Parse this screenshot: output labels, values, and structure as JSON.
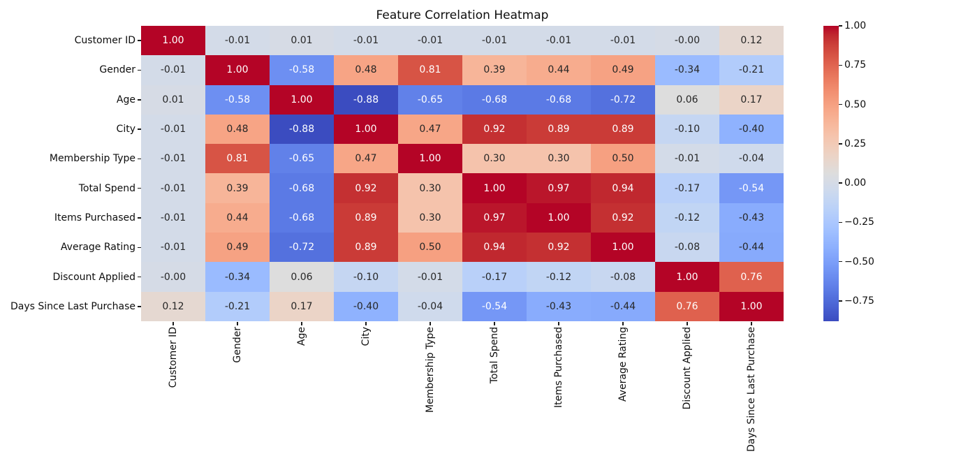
{
  "figure": {
    "background": "#ffffff"
  },
  "chart_data": {
    "type": "heatmap",
    "title": "Feature Correlation Heatmap",
    "categories": [
      "Customer ID",
      "Gender",
      "Age",
      "City",
      "Membership Type",
      "Total Spend",
      "Items Purchased",
      "Average Rating",
      "Discount Applied",
      "Days Since Last Purchase"
    ],
    "matrix": [
      [
        "1.00",
        "-0.01",
        "0.01",
        "-0.01",
        "-0.01",
        "-0.01",
        "-0.01",
        "-0.01",
        "-0.00",
        "0.12"
      ],
      [
        "-0.01",
        "1.00",
        "-0.58",
        "0.48",
        "0.81",
        "0.39",
        "0.44",
        "0.49",
        "-0.34",
        "-0.21"
      ],
      [
        "0.01",
        "-0.58",
        "1.00",
        "-0.88",
        "-0.65",
        "-0.68",
        "-0.68",
        "-0.72",
        "0.06",
        "0.17"
      ],
      [
        "-0.01",
        "0.48",
        "-0.88",
        "1.00",
        "0.47",
        "0.92",
        "0.89",
        "0.89",
        "-0.10",
        "-0.40"
      ],
      [
        "-0.01",
        "0.81",
        "-0.65",
        "0.47",
        "1.00",
        "0.30",
        "0.30",
        "0.50",
        "-0.01",
        "-0.04"
      ],
      [
        "-0.01",
        "0.39",
        "-0.68",
        "0.92",
        "0.30",
        "1.00",
        "0.97",
        "0.94",
        "-0.17",
        "-0.54"
      ],
      [
        "-0.01",
        "0.44",
        "-0.68",
        "0.89",
        "0.30",
        "0.97",
        "1.00",
        "0.92",
        "-0.12",
        "-0.43"
      ],
      [
        "-0.01",
        "0.49",
        "-0.72",
        "0.89",
        "0.50",
        "0.94",
        "0.92",
        "1.00",
        "-0.08",
        "-0.44"
      ],
      [
        "-0.00",
        "-0.34",
        "0.06",
        "-0.10",
        "-0.01",
        "-0.17",
        "-0.12",
        "-0.08",
        "1.00",
        "0.76"
      ],
      [
        "0.12",
        "-0.21",
        "0.17",
        "-0.40",
        "-0.04",
        "-0.54",
        "-0.43",
        "-0.44",
        "0.76",
        "1.00"
      ]
    ],
    "vmin": -0.88,
    "vmax": 1.0,
    "colormap": {
      "name": "coolwarm",
      "anchors": [
        "#3b4cc0",
        "#445acc",
        "#4d68d7",
        "#5775e1",
        "#6282ea",
        "#6c8ef1",
        "#779af7",
        "#82a5fb",
        "#8db0fe",
        "#98b9ff",
        "#a3c2ff",
        "#aec9fd",
        "#b8d0f9",
        "#c2d5f4",
        "#ccd9ee",
        "#d5dbe6",
        "#dddddd",
        "#e5d8d1",
        "#ecd3c5",
        "#f1ccb9",
        "#f5c4ad",
        "#f7bba0",
        "#f7b194",
        "#f7a687",
        "#f49a7b",
        "#f18d6f",
        "#ec7f63",
        "#e57058",
        "#de604d",
        "#d55042",
        "#cb3e38",
        "#c0282f",
        "#b40426"
      ]
    },
    "colorbar_ticks": [
      {
        "label": "1.00",
        "value": 1.0
      },
      {
        "label": "0.75",
        "value": 0.75
      },
      {
        "label": "0.50",
        "value": 0.5
      },
      {
        "label": "0.25",
        "value": 0.25
      },
      {
        "label": "0.00",
        "value": 0.0
      },
      {
        "label": "−0.25",
        "value": -0.25
      },
      {
        "label": "−0.50",
        "value": -0.5
      },
      {
        "label": "−0.75",
        "value": -0.75
      },
      {
        "label": "1.00",
        "value": 1.0
      }
    ],
    "annotation_colors": {
      "on_light": "#262626",
      "on_dark": "#ffffff"
    },
    "axis_color": "#1a1a1a",
    "grid": false,
    "legend_position": "colorbar-right"
  }
}
